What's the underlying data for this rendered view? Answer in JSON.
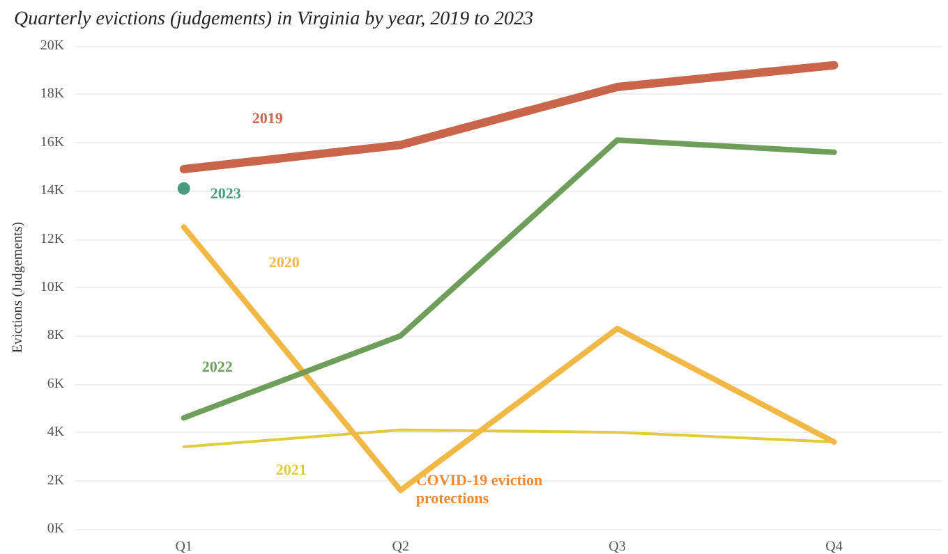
{
  "chart_data": {
    "type": "line",
    "title": "Quarterly evictions (judgements) in Virginia by year, 2019 to 2023",
    "ylabel": "Evictions (Judgements)",
    "categories": [
      "Q1",
      "Q2",
      "Q3",
      "Q4"
    ],
    "series": [
      {
        "name": "2019",
        "color": "#c8654a",
        "values": [
          14.9,
          15.9,
          18.3,
          19.2
        ]
      },
      {
        "name": "2022",
        "color": "#6e9e5a",
        "values": [
          4.6,
          8.0,
          16.1,
          15.6
        ]
      },
      {
        "name": "2020",
        "color": "#f2b845",
        "values": [
          12.5,
          1.6,
          8.3,
          3.6
        ]
      },
      {
        "name": "2021",
        "color": "#e0cc3a",
        "values": [
          3.4,
          4.1,
          4.0,
          3.6
        ]
      },
      {
        "name": "2023",
        "color": "#4a9a80",
        "marker": "circle",
        "values": [
          14.1,
          null,
          null,
          null
        ]
      }
    ],
    "annotations": [
      {
        "text": "COVID-19 eviction protections",
        "x": "Q2",
        "y": 1.6
      }
    ],
    "ylim": [
      0,
      20
    ],
    "yticks": [
      {
        "value": 0,
        "label": "0K"
      },
      {
        "value": 2,
        "label": "2K"
      },
      {
        "value": 4,
        "label": "4K"
      },
      {
        "value": 6,
        "label": "6K"
      },
      {
        "value": 8,
        "label": "8K"
      },
      {
        "value": 10,
        "label": "10K"
      },
      {
        "value": 12,
        "label": "12K"
      },
      {
        "value": 14,
        "label": "14K"
      },
      {
        "value": 16,
        "label": "16K"
      },
      {
        "value": 18,
        "label": "18K"
      },
      {
        "value": 20,
        "label": "20K"
      }
    ],
    "grid": "y",
    "marker": "none",
    "line_style": "solid",
    "legend": false
  }
}
